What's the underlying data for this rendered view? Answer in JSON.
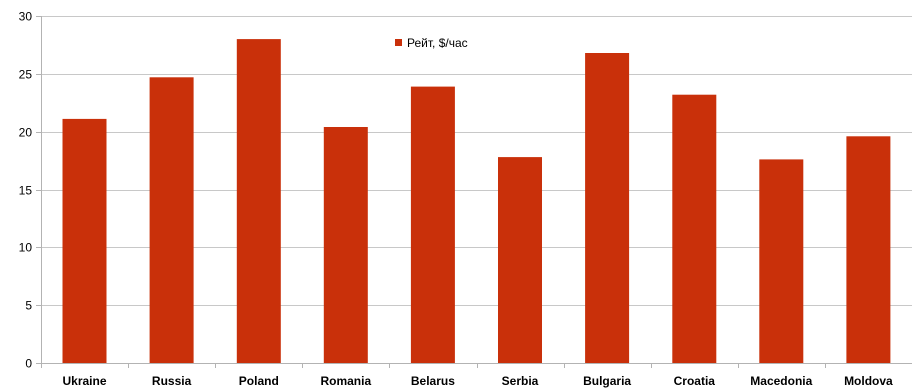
{
  "chart_data": {
    "type": "bar",
    "categories": [
      "Ukraine",
      "Russia",
      "Poland",
      "Romania",
      "Belarus",
      "Serbia",
      "Bulgaria",
      "Croatia",
      "Macedonia",
      "Moldova"
    ],
    "series": [
      {
        "name": "Рейт, $/час",
        "values": [
          21.1,
          24.7,
          28.0,
          20.4,
          23.9,
          17.8,
          26.8,
          23.2,
          17.6,
          19.6
        ]
      }
    ],
    "ylim": [
      0,
      30
    ],
    "yticks": [
      0,
      5,
      10,
      15,
      20,
      25,
      30
    ],
    "grid": true,
    "legend_position": "top-center",
    "colors": {
      "bar": "#C9300A",
      "grid": "#C8C8C8",
      "axis": "#B3B3B3"
    }
  }
}
